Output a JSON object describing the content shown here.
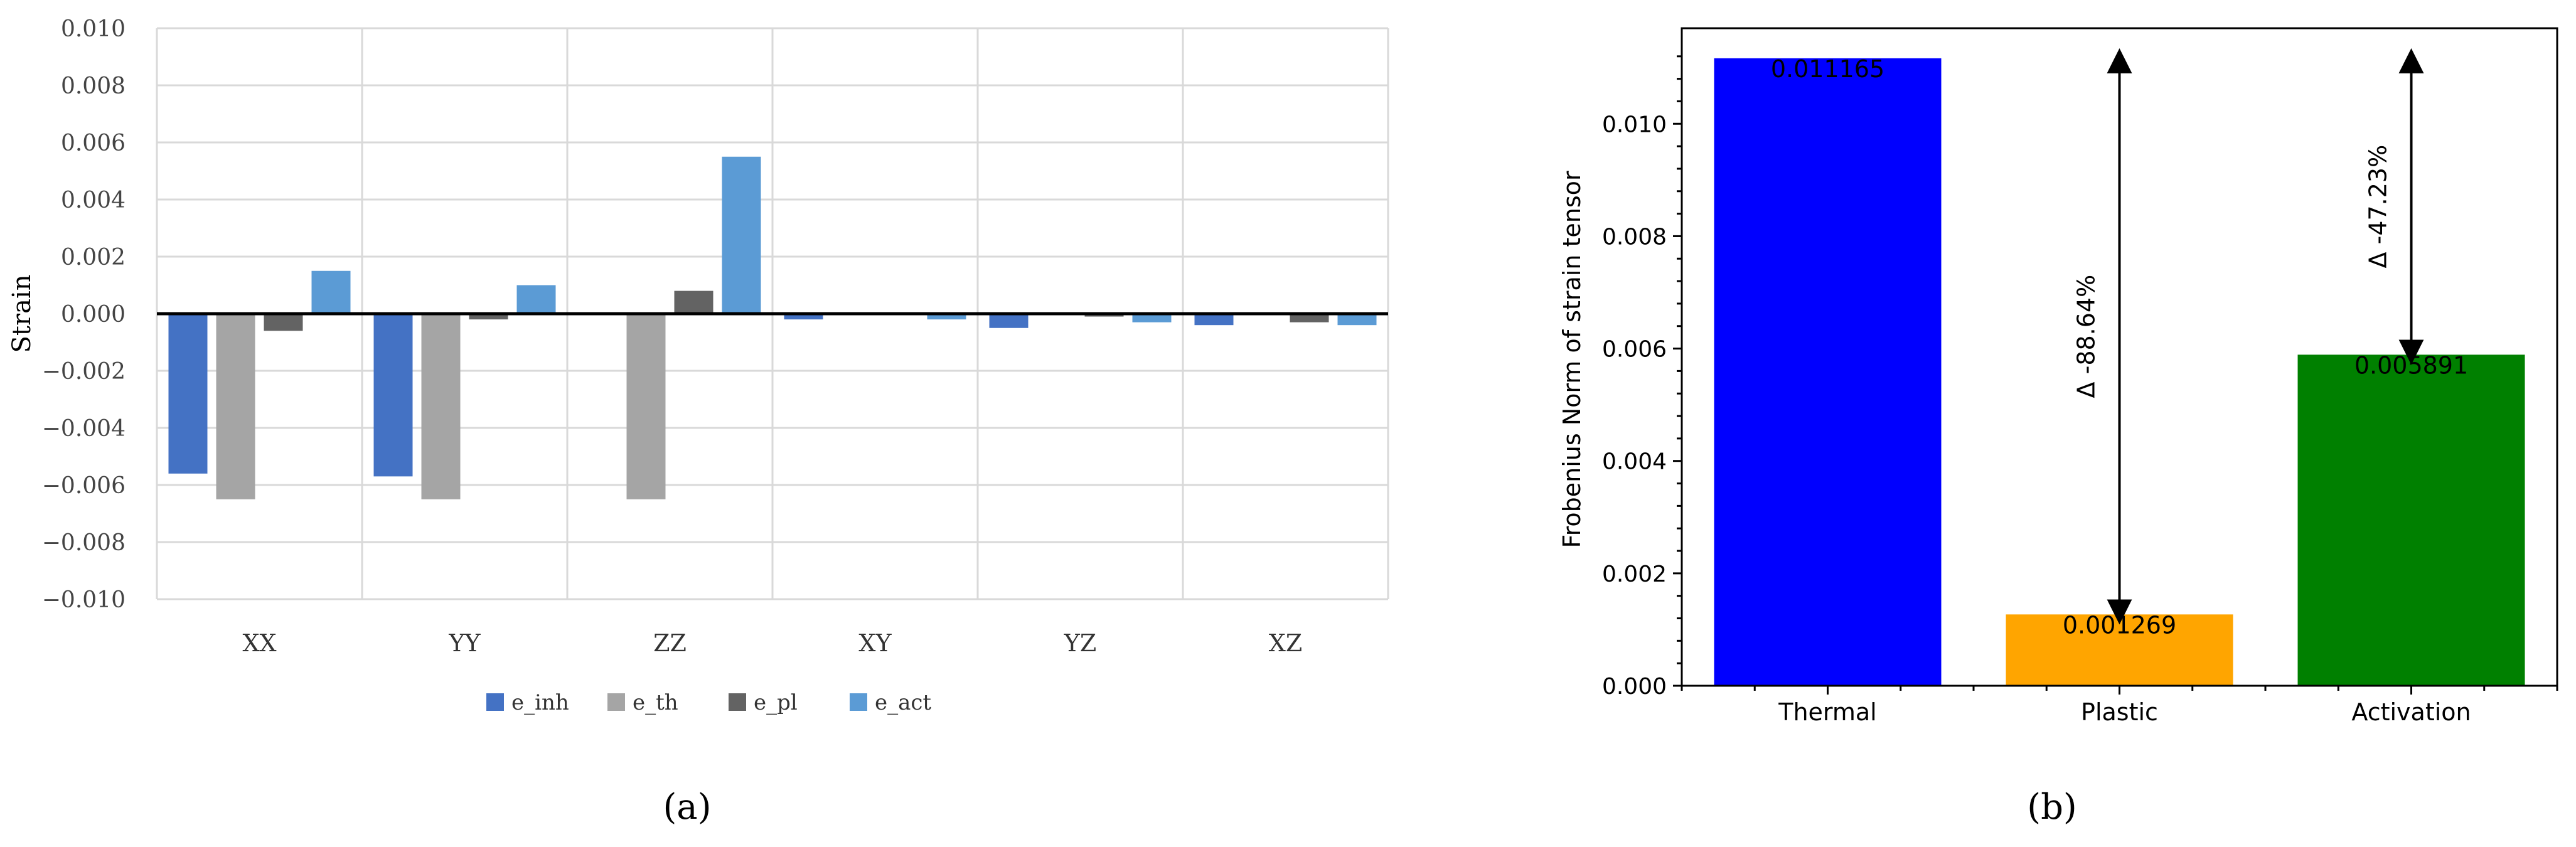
{
  "panel_labels": {
    "a": "(a)",
    "b": "(b)"
  },
  "chart_data": [
    {
      "type": "bar",
      "title": "",
      "xlabel": "",
      "ylabel": "Strain",
      "ylim": [
        -0.01,
        0.01
      ],
      "yticks": [
        "0.010",
        "0.008",
        "0.006",
        "0.004",
        "0.002",
        "0.000",
        "−0.002",
        "−0.004",
        "−0.006",
        "−0.008",
        "−0.010"
      ],
      "ytick_values": [
        0.01,
        0.008,
        0.006,
        0.004,
        0.002,
        0.0,
        -0.002,
        -0.004,
        -0.006,
        -0.008,
        -0.01
      ],
      "categories": [
        "XX",
        "YY",
        "ZZ",
        "XY",
        "YZ",
        "XZ"
      ],
      "grid": true,
      "legend_placement": "bottom",
      "series": [
        {
          "name": "e_inh",
          "color": "#4472c4",
          "values": [
            -0.0056,
            -0.0057,
            0.0,
            -0.0002,
            -0.0005,
            -0.0004
          ]
        },
        {
          "name": "e_th",
          "color": "#a5a5a5",
          "values": [
            -0.0065,
            -0.0065,
            -0.0065,
            0.0,
            0.0,
            0.0
          ]
        },
        {
          "name": "e_pl",
          "color": "#636363",
          "values": [
            -0.0006,
            -0.0002,
            0.0008,
            0.0,
            -0.0001,
            -0.0003
          ]
        },
        {
          "name": "e_act",
          "color": "#5b9bd5",
          "values": [
            0.0015,
            0.001,
            0.0055,
            -0.0002,
            -0.0003,
            -0.0004
          ]
        }
      ]
    },
    {
      "type": "bar",
      "title": "",
      "xlabel": "",
      "ylabel": "Frobenius Norm of strain tensor",
      "ylim": [
        0,
        0.0117
      ],
      "yticks": [
        "0.000",
        "0.002",
        "0.004",
        "0.006",
        "0.008",
        "0.010"
      ],
      "ytick_values": [
        0.0,
        0.002,
        0.004,
        0.006,
        0.008,
        0.01
      ],
      "categories": [
        "Thermal",
        "Plastic",
        "Activation"
      ],
      "values": [
        0.011165,
        0.001269,
        0.005891
      ],
      "value_labels": [
        "0.011165",
        "0.001269",
        "0.005891"
      ],
      "colors": [
        "#0000ff",
        "#ffa500",
        "#008000"
      ],
      "annotations": [
        {
          "text": "Δ -88.64%",
          "from_value": 0.011165,
          "to_value": 0.001269,
          "at_category": "Plastic"
        },
        {
          "text": "Δ -47.23%",
          "from_value": 0.011165,
          "to_value": 0.005891,
          "at_category": "Activation"
        }
      ]
    }
  ]
}
